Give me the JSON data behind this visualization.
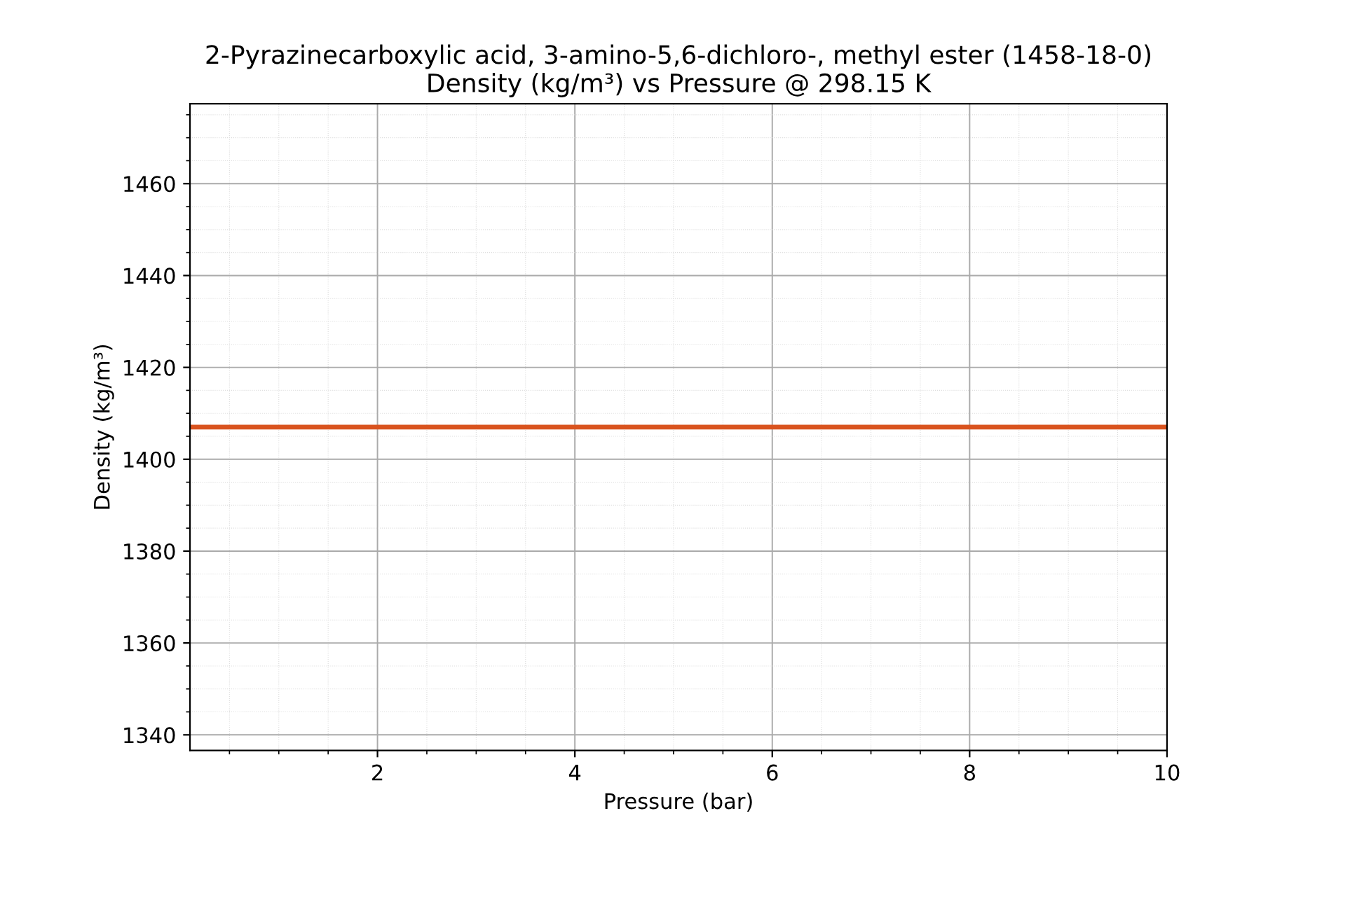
{
  "chart_data": {
    "type": "line",
    "title": "2-Pyrazinecarboxylic acid, 3-amino-5,6-dichloro-, methyl ester (1458-18-0)\nDensity (kg/m³) vs Pressure @ 298.15 K",
    "xlabel": "Pressure (bar)",
    "ylabel": "Density (kg/m³)",
    "x": [
      0.1,
      10
    ],
    "series": [
      {
        "color": "#d9531e",
        "values": [
          1407,
          1407
        ]
      }
    ],
    "xlim": [
      0.1,
      10
    ],
    "xticks": [
      2,
      4,
      6,
      8,
      10
    ],
    "ylim": [
      1336.6,
      1477.4
    ],
    "yticks": [
      1340,
      1360,
      1380,
      1400,
      1420,
      1440,
      1460
    ],
    "grid": true,
    "marker": "none",
    "line_style": "solid"
  }
}
